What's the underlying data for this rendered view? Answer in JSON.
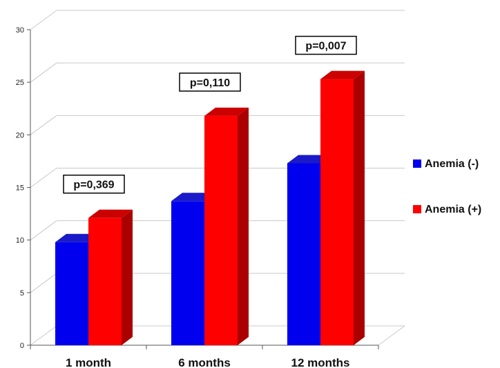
{
  "chart_data": {
    "type": "bar",
    "categories": [
      "1 month",
      "6 months",
      "12 months"
    ],
    "series": [
      {
        "name": "Anemia (-)",
        "values": [
          9.8,
          13.7,
          17.3
        ],
        "color": "#0000ee",
        "side": "#000099",
        "top": "#1a1ac8"
      },
      {
        "name": "Anemia (+)",
        "values": [
          12.1,
          21.8,
          25.3
        ],
        "color": "#ff0000",
        "side": "#aa0000",
        "top": "#cc0000"
      }
    ],
    "annotations": [
      "p=0,369",
      "p=0,110",
      "p=0,007"
    ],
    "ylim": [
      0,
      30
    ],
    "yticks": [
      0,
      5,
      10,
      15,
      20,
      25,
      30
    ],
    "grid": true,
    "legend": "right",
    "title": "",
    "xlabel": "",
    "ylabel": ""
  }
}
